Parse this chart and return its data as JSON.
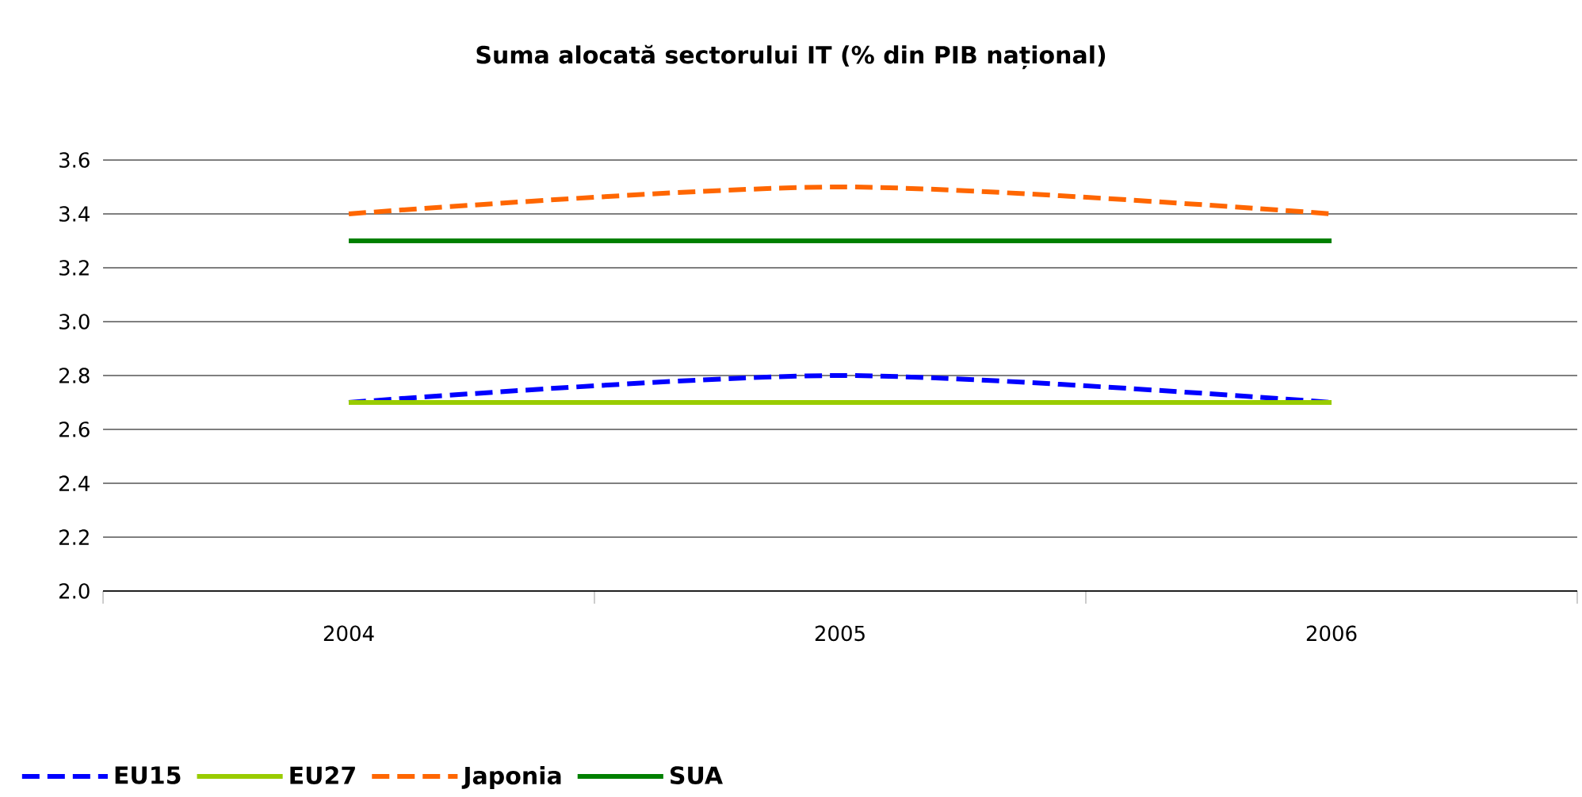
{
  "chart_data": {
    "type": "line",
    "title": "Suma alocată sectorului IT (% din PIB național)",
    "categories": [
      "2004",
      "2005",
      "2006"
    ],
    "series": [
      {
        "name": "EU15",
        "color": "#0000ff",
        "line_style": "dashed",
        "values": [
          2.7,
          2.8,
          2.7
        ]
      },
      {
        "name": "EU27",
        "color": "#99cc00",
        "line_style": "solid",
        "values": [
          2.7,
          2.7,
          2.7
        ]
      },
      {
        "name": "Japonia",
        "color": "#ff6600",
        "line_style": "dashed",
        "values": [
          3.4,
          3.5,
          3.4
        ]
      },
      {
        "name": "SUA",
        "color": "#008000",
        "line_style": "solid",
        "values": [
          3.3,
          3.3,
          3.3
        ]
      }
    ],
    "ylim": [
      2.0,
      3.6
    ],
    "yticks": [
      {
        "value": 2.0,
        "label": "2.0"
      },
      2.2,
      2.4,
      2.6,
      2.8,
      {
        "value": 3.0,
        "label": "3.0"
      },
      3.2,
      3.4,
      3.6
    ],
    "grid": "y",
    "legend": "bottom left",
    "marker": "none"
  }
}
